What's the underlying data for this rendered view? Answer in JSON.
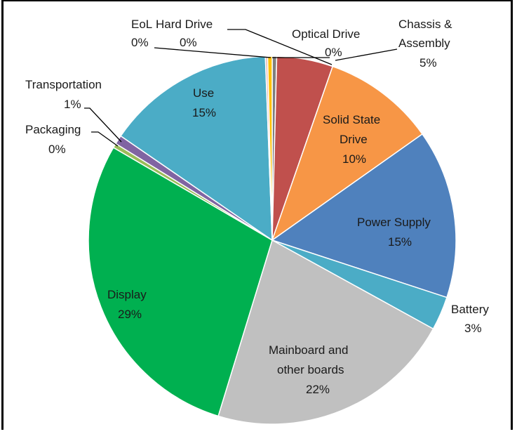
{
  "chart_data": {
    "type": "pie",
    "title": "",
    "slices": [
      {
        "label": "Optical Drive",
        "value": 0.4,
        "display": "0%",
        "color": "#7F7F7F"
      },
      {
        "label": "Chassis & Assembly",
        "value": 5,
        "display": "5%",
        "color": "#C0504D"
      },
      {
        "label": "Solid State Drive",
        "value": 10,
        "display": "10%",
        "color": "#F79646"
      },
      {
        "label": "Power Supply",
        "value": 15,
        "display": "15%",
        "color": "#4F81BD"
      },
      {
        "label": "Battery",
        "value": 3,
        "display": "3%",
        "color": "#4BACC6"
      },
      {
        "label": "Mainboard and other boards",
        "value": 22,
        "display": "22%",
        "color": "#C0C0C0"
      },
      {
        "label": "Display",
        "value": 29,
        "display": "29%",
        "color": "#00B050"
      },
      {
        "label": "Packaging",
        "value": 0.4,
        "display": "0%",
        "color": "#9BBB59"
      },
      {
        "label": "Transportation",
        "value": 0.8,
        "display": "1%",
        "color": "#8064A2"
      },
      {
        "label": "Use",
        "value": 15,
        "display": "15%",
        "color": "#4BACC6"
      },
      {
        "label": "EoL",
        "value": 0.2,
        "display": "0%",
        "color": "#E6B9B8"
      },
      {
        "label": "Hard Drive",
        "value": 0.4,
        "display": "0%",
        "color": "#FFC000"
      }
    ],
    "legend": "none"
  }
}
